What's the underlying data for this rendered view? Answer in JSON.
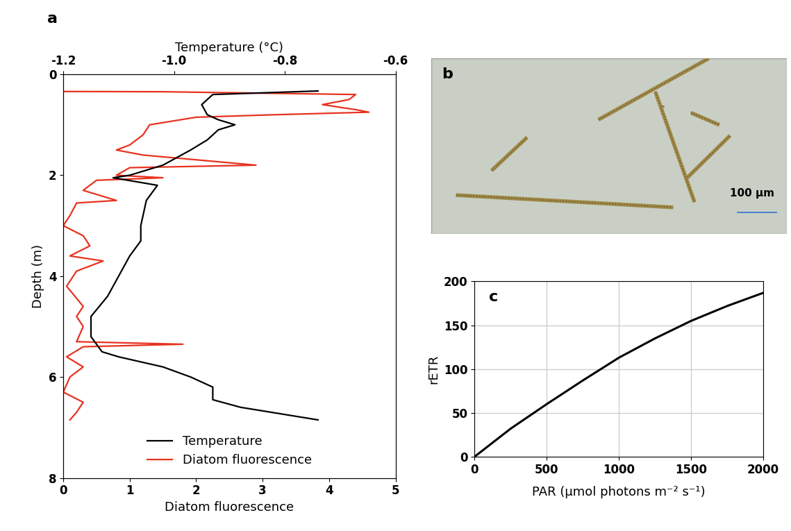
{
  "chart_data": [
    {
      "type": "line",
      "title": "a",
      "ylabel": "Depth (m)",
      "xlabel": "Diatom fluorescence",
      "x2label": "Temperature (°C)",
      "xlim": [
        0,
        5
      ],
      "xticks": [
        0,
        1,
        2,
        3,
        4,
        5
      ],
      "x2lim": [
        -1.2,
        -0.6
      ],
      "x2ticks": [
        -1.2,
        -1.0,
        -0.8,
        -0.6
      ],
      "ylim": [
        8,
        0
      ],
      "yticks": [
        0,
        2,
        4,
        6,
        8
      ],
      "legend": "lower center",
      "series": [
        {
          "name": "Temperature",
          "color": "#000000",
          "axis": "x2",
          "x": [
            -0.74,
            -0.93,
            -0.95,
            -0.94,
            -0.92,
            -0.89,
            -0.92,
            -0.94,
            -0.97,
            -1.02,
            -1.08,
            -1.11,
            -1.03,
            -1.05,
            -1.06,
            -1.06,
            -1.08,
            -1.1,
            -1.12,
            -1.15,
            -1.15,
            -1.13,
            -1.1,
            -1.02,
            -0.97,
            -0.93,
            -0.93,
            -0.88,
            -0.74
          ],
          "y": [
            0.33,
            0.4,
            0.6,
            0.8,
            0.9,
            1.0,
            1.1,
            1.3,
            1.5,
            1.8,
            2.0,
            2.05,
            2.2,
            2.5,
            3.0,
            3.3,
            3.6,
            4.0,
            4.4,
            4.8,
            5.2,
            5.5,
            5.6,
            5.8,
            6.0,
            6.2,
            6.45,
            6.6,
            6.85
          ]
        },
        {
          "name": "Diatom fluorescence",
          "color": "#e8321e",
          "x": [
            0.0,
            1.5,
            4.4,
            4.3,
            3.9,
            4.4,
            4.6,
            3.2,
            2.0,
            1.3,
            1.2,
            1.0,
            0.8,
            1.2,
            2.9,
            1.0,
            0.8,
            1.5,
            0.5,
            0.3,
            0.8,
            0.2,
            0.1,
            0.0,
            0.3,
            0.4,
            0.1,
            0.6,
            0.2,
            0.05,
            0.3,
            0.2,
            0.3,
            0.2,
            1.8,
            0.3,
            0.05,
            0.3,
            0.1,
            0.0,
            0.3,
            0.2,
            0.1
          ],
          "y": [
            0.34,
            0.345,
            0.4,
            0.5,
            0.6,
            0.7,
            0.75,
            0.8,
            0.85,
            1.0,
            1.2,
            1.4,
            1.5,
            1.6,
            1.8,
            1.85,
            2.0,
            2.05,
            2.1,
            2.3,
            2.5,
            2.55,
            2.8,
            3.0,
            3.2,
            3.4,
            3.6,
            3.7,
            3.9,
            4.2,
            4.6,
            4.8,
            5.0,
            5.3,
            5.35,
            5.4,
            5.6,
            5.8,
            6.0,
            6.3,
            6.5,
            6.7,
            6.85
          ]
        }
      ]
    },
    {
      "type": "image",
      "title": "b",
      "scale_label": "100 µm"
    },
    {
      "type": "line",
      "title": "c",
      "xlabel": "PAR (µmol photons m⁻² s⁻¹)",
      "ylabel": "rETR",
      "xlim": [
        0,
        2000
      ],
      "xticks": [
        0,
        500,
        1000,
        1500,
        2000
      ],
      "ylim": [
        0,
        200
      ],
      "yticks": [
        0,
        50,
        100,
        150,
        200
      ],
      "grid": true,
      "series": [
        {
          "color": "#000000",
          "x": [
            0,
            250,
            500,
            750,
            1000,
            1250,
            1500,
            1750,
            2000
          ],
          "y": [
            0,
            32,
            60,
            87,
            113,
            135,
            155,
            172,
            187
          ]
        }
      ]
    }
  ]
}
